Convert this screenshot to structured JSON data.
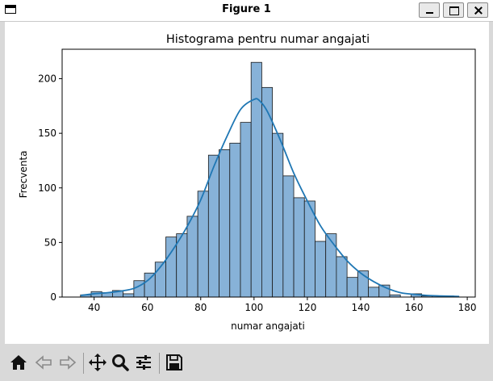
{
  "window": {
    "title": "Figure 1",
    "controls": [
      "minimize",
      "maximize",
      "close"
    ]
  },
  "toolbar": {
    "buttons": [
      {
        "name": "home-icon",
        "tooltip": "Home"
      },
      {
        "name": "back-icon",
        "tooltip": "Back"
      },
      {
        "name": "forward-icon",
        "tooltip": "Forward"
      },
      {
        "name": "pan-icon",
        "tooltip": "Pan"
      },
      {
        "name": "zoom-icon",
        "tooltip": "Zoom"
      },
      {
        "name": "subplots-icon",
        "tooltip": "Configure subplots"
      },
      {
        "name": "save-icon",
        "tooltip": "Save"
      }
    ]
  },
  "colors": {
    "bar_fill": "#87b2d8",
    "bar_edge": "#1a1a1a",
    "kde_line": "#1f77b4"
  },
  "chart_data": {
    "type": "bar",
    "subtype": "histogram_with_kde",
    "title": "Histograma pentru numar angajati",
    "xlabel": "numar angajati",
    "ylabel": "Frecventa",
    "xlim": [
      28,
      183
    ],
    "ylim": [
      0,
      227
    ],
    "xticks": [
      "40",
      "60",
      "80",
      "100",
      "120",
      "140",
      "160",
      "180"
    ],
    "yticks": [
      "0",
      "50",
      "100",
      "150",
      "200"
    ],
    "grid": false,
    "bin_edges": [
      34.9,
      38.9,
      42.9,
      46.9,
      50.9,
      54.9,
      58.9,
      62.9,
      66.9,
      70.9,
      74.9,
      78.9,
      82.9,
      86.9,
      90.9,
      94.9,
      98.9,
      102.9,
      106.9,
      110.9,
      114.9,
      118.9,
      122.9,
      126.9,
      130.9,
      134.9,
      138.9,
      142.9,
      146.9,
      150.9,
      154.9,
      158.9,
      162.9,
      166.9,
      170.9,
      174.9
    ],
    "counts": [
      2,
      5,
      4,
      6,
      3,
      15,
      22,
      32,
      55,
      58,
      74,
      97,
      130,
      135,
      141,
      160,
      215,
      192,
      150,
      111,
      91,
      88,
      51,
      58,
      37,
      18,
      24,
      9,
      11,
      2,
      0,
      3,
      1,
      1,
      1
    ],
    "kde": {
      "x": [
        35,
        40,
        45,
        50,
        55,
        60,
        65,
        70,
        75,
        80,
        85,
        90,
        95,
        100,
        102,
        105,
        110,
        115,
        120,
        125,
        130,
        135,
        140,
        145,
        150,
        155,
        160,
        165,
        170,
        177
      ],
      "y": [
        1.5,
        3,
        4,
        5.5,
        8,
        15,
        28,
        45,
        65,
        89,
        120,
        148,
        172,
        181,
        180,
        170,
        143,
        113,
        88,
        65,
        48,
        33,
        22,
        14,
        8,
        4,
        2.5,
        1.5,
        1,
        0.5
      ]
    }
  }
}
